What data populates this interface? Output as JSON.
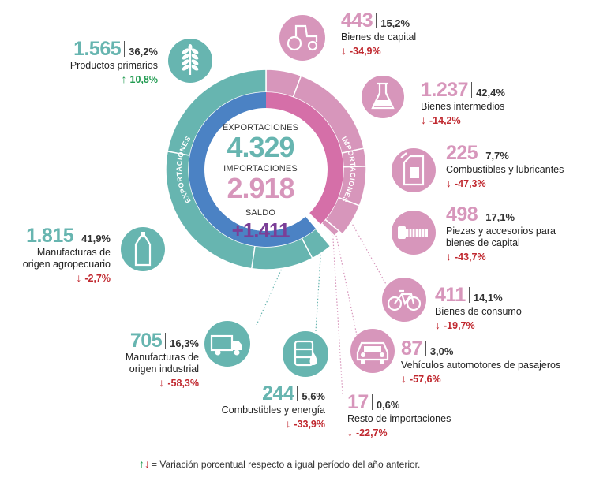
{
  "center": {
    "exports_label": "EXPORTACIONES",
    "exports_value": "4.329",
    "imports_label": "IMPORTACIONES",
    "imports_value": "2.918",
    "balance_label": "SALDO",
    "balance_value": "+1.411",
    "ring_exports_label": "EXPORTACIONES",
    "ring_imports_label": "IMPORTACIONES"
  },
  "exports": [
    {
      "value": "1.565",
      "share": "36,2%",
      "name_lines": [
        "Productos primarios"
      ],
      "change": "10,8%",
      "direction": "up",
      "icon": "wheat-icon"
    },
    {
      "value": "1.815",
      "share": "41,9%",
      "name_lines": [
        "Manufacturas de",
        "origen agropecuario"
      ],
      "change": "-2,7%",
      "direction": "down",
      "icon": "bottle-icon"
    },
    {
      "value": "705",
      "share": "16,3%",
      "name_lines": [
        "Manufacturas de",
        "origen industrial"
      ],
      "change": "-58,3%",
      "direction": "down",
      "icon": "truck-icon"
    },
    {
      "value": "244",
      "share": "5,6%",
      "name_lines": [
        "Combustibles y energía"
      ],
      "change": "-33,9%",
      "direction": "down",
      "icon": "oil-barrel-icon"
    }
  ],
  "imports": [
    {
      "value": "443",
      "share": "15,2%",
      "name_lines": [
        "Bienes de capital"
      ],
      "change": "-34,9%",
      "direction": "down",
      "icon": "tractor-icon"
    },
    {
      "value": "1.237",
      "share": "42,4%",
      "name_lines": [
        "Bienes intermedios"
      ],
      "change": "-14,2%",
      "direction": "down",
      "icon": "flask-icon"
    },
    {
      "value": "225",
      "share": "7,7%",
      "name_lines": [
        "Combustibles y lubricantes"
      ],
      "change": "-47,3%",
      "direction": "down",
      "icon": "jerrycan-icon"
    },
    {
      "value": "498",
      "share": "17,1%",
      "name_lines": [
        "Piezas y accesorios para",
        "bienes de capital"
      ],
      "change": "-43,7%",
      "direction": "down",
      "icon": "bolt-icon"
    },
    {
      "value": "411",
      "share": "14,1%",
      "name_lines": [
        "Bienes de consumo"
      ],
      "change": "-19,7%",
      "direction": "down",
      "icon": "bicycle-icon"
    },
    {
      "value": "87",
      "share": "3,0%",
      "name_lines": [
        "Vehículos automotores de pasajeros"
      ],
      "change": "-57,6%",
      "direction": "down",
      "icon": "car-icon"
    },
    {
      "value": "17",
      "share": "0,6%",
      "name_lines": [
        "Resto de importaciones"
      ],
      "change": "-22,7%",
      "direction": "down",
      "icon": ""
    }
  ],
  "footer": {
    "up_arrow": "↑",
    "down_arrow": "↓",
    "text": "= Variación porcentual respecto a igual período del año anterior."
  },
  "colors": {
    "exports_main": "#67b5b0",
    "exports_inner": "#4b82c4",
    "imports_main": "#d796bb",
    "imports_inner": "#d56fa8",
    "balance": "#7b3f97",
    "down": "#c0282f",
    "up": "#1f9a4f"
  },
  "chart_data": {
    "type": "pie",
    "groups": [
      {
        "name": "EXPORTACIONES",
        "total": 4329,
        "categories": [
          "Productos primarios",
          "Manufacturas de origen agropecuario",
          "Manufacturas de origen industrial",
          "Combustibles y energía"
        ],
        "values": [
          1565,
          1815,
          705,
          244
        ],
        "shares_pct": [
          36.2,
          41.9,
          16.3,
          5.6
        ],
        "change_pct": [
          10.8,
          -2.7,
          -58.3,
          -33.9
        ]
      },
      {
        "name": "IMPORTACIONES",
        "total": 2918,
        "categories": [
          "Bienes de capital",
          "Bienes intermedios",
          "Combustibles y lubricantes",
          "Piezas y accesorios para bienes de capital",
          "Bienes de consumo",
          "Vehículos automotores de pasajeros",
          "Resto de importaciones"
        ],
        "values": [
          443,
          1237,
          225,
          498,
          411,
          87,
          17
        ],
        "shares_pct": [
          15.2,
          42.4,
          7.7,
          17.1,
          14.1,
          3.0,
          0.6
        ],
        "change_pct": [
          -34.9,
          -14.2,
          -47.3,
          -43.7,
          -19.7,
          -57.6,
          -22.7
        ]
      }
    ],
    "balance": 1411
  }
}
